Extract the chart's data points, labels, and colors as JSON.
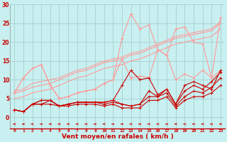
{
  "title": "",
  "xlabel": "Vent moyen/en rafales ( km/h )",
  "bg_color": "#c8f0f0",
  "grid_color": "#a0c8c8",
  "x": [
    0,
    1,
    2,
    3,
    4,
    5,
    6,
    7,
    8,
    9,
    10,
    11,
    12,
    13,
    14,
    15,
    16,
    17,
    18,
    19,
    20,
    21,
    22,
    23
  ],
  "xlim": [
    -0.5,
    23.5
  ],
  "ylim": [
    -3,
    30
  ],
  "yticks": [
    0,
    5,
    10,
    15,
    20,
    25,
    30
  ],
  "line_upper2": [
    6.5,
    10.5,
    13.0,
    14.0,
    8.5,
    5.0,
    5.5,
    6.5,
    7.0,
    7.5,
    9.0,
    10.0,
    21.0,
    27.5,
    23.5,
    24.5,
    18.0,
    16.5,
    23.5,
    24.0,
    20.0,
    19.5,
    10.5,
    26.5
  ],
  "line_upper1": [
    6.5,
    10.5,
    13.0,
    14.0,
    8.5,
    5.0,
    5.5,
    6.5,
    7.0,
    7.5,
    9.0,
    10.0,
    15.5,
    10.5,
    11.0,
    10.5,
    18.0,
    16.5,
    10.0,
    11.5,
    10.5,
    12.5,
    10.5,
    12.5
  ],
  "line_trend1": [
    7.0,
    7.5,
    9.0,
    9.5,
    10.0,
    10.5,
    11.5,
    12.5,
    13.0,
    14.0,
    15.0,
    15.5,
    16.0,
    17.0,
    17.5,
    18.5,
    19.5,
    20.5,
    21.5,
    22.0,
    22.5,
    23.0,
    23.5,
    25.5
  ],
  "line_trend2": [
    6.5,
    7.0,
    8.0,
    8.5,
    9.0,
    10.0,
    11.0,
    12.0,
    12.5,
    13.5,
    14.5,
    15.0,
    15.5,
    16.5,
    17.0,
    18.0,
    19.0,
    20.0,
    21.0,
    21.5,
    22.0,
    22.5,
    23.0,
    25.0
  ],
  "line_trend3": [
    5.0,
    5.5,
    6.5,
    7.0,
    7.5,
    8.5,
    9.5,
    10.5,
    11.0,
    12.0,
    13.0,
    13.5,
    14.0,
    15.0,
    15.5,
    16.5,
    17.5,
    18.5,
    19.5,
    20.0,
    20.5,
    21.0,
    21.5,
    23.5
  ],
  "line_lower2": [
    2.0,
    1.5,
    3.5,
    4.5,
    4.5,
    3.0,
    3.5,
    4.0,
    4.0,
    4.0,
    4.0,
    4.5,
    8.5,
    12.5,
    10.0,
    10.5,
    6.0,
    7.5,
    3.5,
    8.5,
    9.5,
    8.5,
    7.5,
    12.5
  ],
  "line_lower1": [
    2.0,
    1.5,
    3.5,
    4.5,
    4.5,
    3.0,
    3.5,
    4.0,
    4.0,
    4.0,
    4.0,
    4.5,
    3.5,
    3.0,
    3.5,
    7.0,
    5.5,
    7.5,
    3.5,
    7.0,
    8.5,
    7.5,
    9.5,
    12.0
  ],
  "line_lower3": [
    2.0,
    1.5,
    3.5,
    3.5,
    4.5,
    3.0,
    3.5,
    4.0,
    4.0,
    4.0,
    3.5,
    4.0,
    3.5,
    3.0,
    3.5,
    5.5,
    5.5,
    6.5,
    3.0,
    5.5,
    7.0,
    6.5,
    8.0,
    10.5
  ],
  "line_lower4": [
    2.0,
    1.5,
    3.5,
    3.5,
    3.5,
    3.0,
    3.0,
    3.5,
    3.5,
    3.5,
    3.0,
    3.5,
    2.5,
    2.5,
    2.5,
    4.5,
    4.5,
    5.5,
    2.5,
    4.5,
    5.5,
    5.5,
    6.5,
    8.5
  ],
  "color_light": "#ff9999",
  "color_dark": "#cc0000",
  "marker_size": 2.5,
  "lw_light": 0.8,
  "lw_dark": 0.8
}
